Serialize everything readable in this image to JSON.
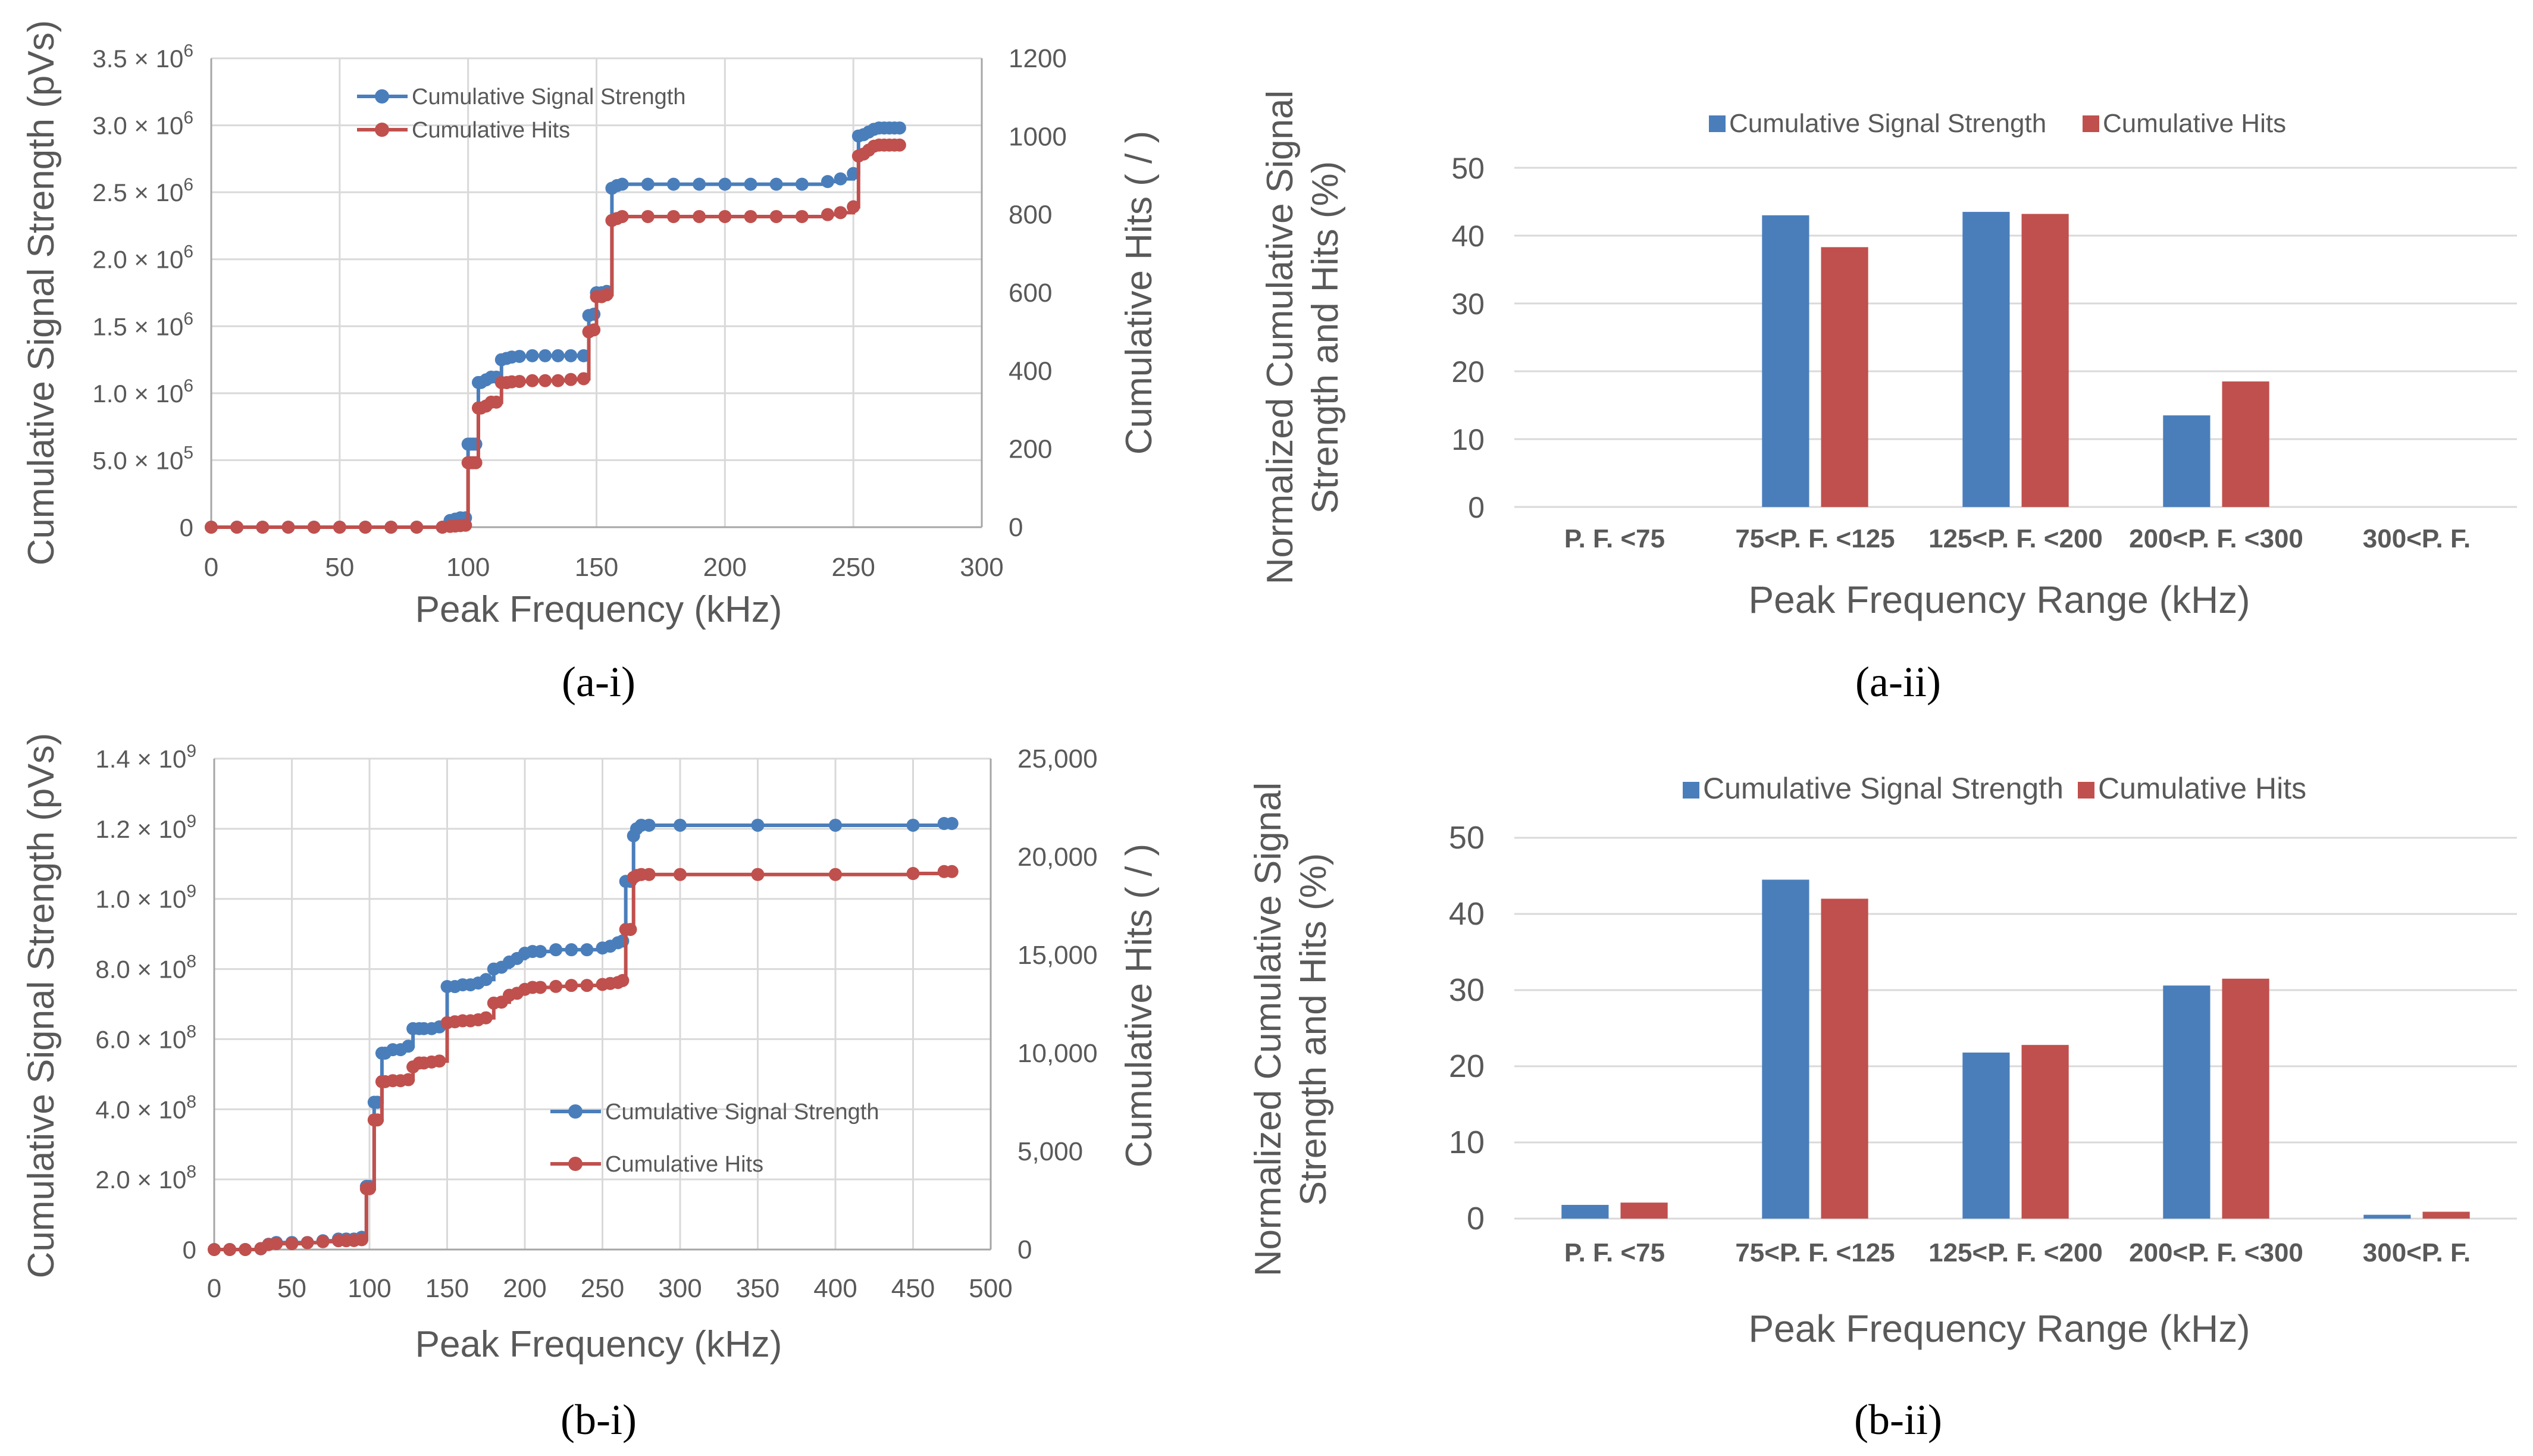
{
  "captions": {
    "a_i": "(a-i)",
    "a_ii": "(a-ii)",
    "b_i": "(b-i)",
    "b_ii": "(b-ii)"
  },
  "colors": {
    "blue": "#4a7ebb",
    "red": "#c0504d",
    "grid": "#d9d9d9",
    "axis_text": "#595959"
  },
  "chart_data": [
    {
      "id": "a-i",
      "type": "line",
      "xlabel": "Peak Frequency (kHz)",
      "ylabel": "Cumulative Signal Strength (pVs)",
      "y2label": "Cumulative Hits ( / )",
      "xlim": [
        0,
        300
      ],
      "xticks": [
        0,
        50,
        100,
        150,
        200,
        250,
        300
      ],
      "ylim": [
        0,
        3500000
      ],
      "yticks": [
        {
          "v": 0,
          "m": "0",
          "e": ""
        },
        {
          "v": 500000,
          "m": "5.0 × 10",
          "e": "5"
        },
        {
          "v": 1000000,
          "m": "1.0 × 10",
          "e": "6"
        },
        {
          "v": 1500000,
          "m": "1.5 × 10",
          "e": "6"
        },
        {
          "v": 2000000,
          "m": "2.0 × 10",
          "e": "6"
        },
        {
          "v": 2500000,
          "m": "2.5 × 10",
          "e": "6"
        },
        {
          "v": 3000000,
          "m": "3.0 × 10",
          "e": "6"
        },
        {
          "v": 3500000,
          "m": "3.5 × 10",
          "e": "6"
        }
      ],
      "y2lim": [
        0,
        1200
      ],
      "y2ticks": [
        "0",
        "200",
        "400",
        "600",
        "800",
        "1000",
        "1200"
      ],
      "legend_position": "top-left",
      "series": [
        {
          "name": "Cumulative Signal Strength",
          "color": "#4a7ebb",
          "axis": "left",
          "x": [
            0,
            10,
            20,
            30,
            40,
            50,
            60,
            70,
            80,
            90,
            93,
            95,
            97,
            99,
            100,
            101,
            102,
            103,
            104,
            105,
            107,
            109,
            111,
            113,
            115,
            117,
            120,
            125,
            130,
            135,
            140,
            145,
            147,
            149,
            150,
            152,
            154,
            156,
            158,
            160,
            170,
            180,
            190,
            200,
            210,
            220,
            230,
            240,
            245,
            250,
            252,
            254,
            256,
            258,
            260,
            262,
            264,
            266,
            268
          ],
          "y": [
            0,
            0,
            0,
            0,
            0,
            0,
            0,
            0,
            0,
            0,
            50000,
            60000,
            70000,
            70000,
            620000,
            620000,
            620000,
            620000,
            1080000,
            1080000,
            1100000,
            1120000,
            1120000,
            1250000,
            1260000,
            1270000,
            1275000,
            1280000,
            1280000,
            1280000,
            1280000,
            1280000,
            1580000,
            1590000,
            1750000,
            1750000,
            1760000,
            2530000,
            2550000,
            2560000,
            2560000,
            2560000,
            2560000,
            2560000,
            2560000,
            2560000,
            2560000,
            2580000,
            2600000,
            2640000,
            2920000,
            2930000,
            2950000,
            2970000,
            2980000,
            2980000,
            2980000,
            2980000,
            2980000
          ]
        },
        {
          "name": "Cumulative Hits",
          "color": "#c0504d",
          "axis": "right",
          "x": [
            0,
            10,
            20,
            30,
            40,
            50,
            60,
            70,
            80,
            90,
            93,
            95,
            97,
            99,
            100,
            101,
            102,
            103,
            104,
            105,
            107,
            109,
            111,
            113,
            115,
            117,
            120,
            125,
            130,
            135,
            140,
            145,
            147,
            149,
            150,
            152,
            154,
            156,
            158,
            160,
            170,
            180,
            190,
            200,
            210,
            220,
            230,
            240,
            245,
            250,
            252,
            254,
            256,
            258,
            260,
            262,
            264,
            266,
            268
          ],
          "y": [
            0,
            0,
            0,
            0,
            0,
            0,
            0,
            0,
            0,
            0,
            2,
            3,
            4,
            5,
            165,
            165,
            165,
            165,
            305,
            305,
            310,
            320,
            320,
            370,
            370,
            372,
            373,
            375,
            375,
            375,
            378,
            380,
            500,
            505,
            590,
            590,
            595,
            785,
            790,
            795,
            795,
            795,
            795,
            795,
            795,
            795,
            795,
            800,
            805,
            820,
            950,
            955,
            965,
            975,
            978,
            978,
            978,
            978,
            978
          ]
        }
      ]
    },
    {
      "id": "a-ii",
      "type": "bar",
      "xlabel": "Peak Frequency Range (kHz)",
      "ylabel_lines": [
        "Normalized Cumulative Signal",
        "Strength and Hits (%)"
      ],
      "categories": [
        "P. F. <75",
        "75<P. F. <125",
        "125<P. F. <200",
        "200<P. F. <300",
        "300<P. F."
      ],
      "ylim": [
        0,
        50
      ],
      "yticks": [
        "0",
        "10",
        "20",
        "30",
        "40",
        "50"
      ],
      "legend_position": "top",
      "series": [
        {
          "name": "Cumulative Signal Strength",
          "color": "#4a7ebb",
          "values": [
            0,
            43,
            43.5,
            13.5,
            0
          ]
        },
        {
          "name": "Cumulative Hits",
          "color": "#c0504d",
          "values": [
            0,
            38.3,
            43.2,
            18.5,
            0
          ]
        }
      ]
    },
    {
      "id": "b-i",
      "type": "line",
      "xlabel": "Peak Frequency (kHz)",
      "ylabel": "Cumulative Signal Strength (pVs)",
      "y2label": "Cumulative Hits ( / )",
      "xlim": [
        0,
        500
      ],
      "xticks": [
        0,
        50,
        100,
        150,
        200,
        250,
        300,
        350,
        400,
        450,
        500
      ],
      "ylim": [
        0,
        1400000000
      ],
      "yticks": [
        {
          "v": 0,
          "m": "0",
          "e": ""
        },
        {
          "v": 200000000,
          "m": "2.0 × 10",
          "e": "8"
        },
        {
          "v": 400000000,
          "m": "4.0 × 10",
          "e": "8"
        },
        {
          "v": 600000000,
          "m": "6.0 × 10",
          "e": "8"
        },
        {
          "v": 800000000,
          "m": "8.0 × 10",
          "e": "8"
        },
        {
          "v": 1000000000,
          "m": "1.0 × 10",
          "e": "9"
        },
        {
          "v": 1200000000,
          "m": "1.2 × 10",
          "e": "9"
        },
        {
          "v": 1400000000,
          "m": "1.4 × 10",
          "e": "9"
        }
      ],
      "y2lim": [
        0,
        25000
      ],
      "y2ticks": [
        "0",
        "5,000",
        "10,000",
        "15,000",
        "20,000",
        "25,000"
      ],
      "legend_position": "bottom-right",
      "series": [
        {
          "name": "Cumulative Signal Strength",
          "color": "#4a7ebb",
          "axis": "left",
          "x": [
            0,
            10,
            20,
            30,
            35,
            40,
            50,
            60,
            70,
            80,
            85,
            90,
            95,
            98,
            100,
            103,
            105,
            108,
            110,
            115,
            120,
            125,
            128,
            132,
            135,
            140,
            145,
            150,
            155,
            160,
            165,
            170,
            175,
            180,
            185,
            190,
            195,
            200,
            205,
            210,
            220,
            230,
            240,
            250,
            255,
            260,
            263,
            265,
            268,
            270,
            272,
            275,
            280,
            300,
            350,
            400,
            450,
            470,
            475
          ],
          "y": [
            0,
            0,
            0,
            2000000,
            15000000,
            20000000,
            20000000,
            20000000,
            25000000,
            30000000,
            30000000,
            30000000,
            35000000,
            180000000,
            180000000,
            420000000,
            420000000,
            560000000,
            560000000,
            570000000,
            570000000,
            580000000,
            630000000,
            630000000,
            630000000,
            630000000,
            635000000,
            750000000,
            750000000,
            755000000,
            755000000,
            760000000,
            770000000,
            800000000,
            805000000,
            820000000,
            830000000,
            845000000,
            850000000,
            850000000,
            855000000,
            855000000,
            855000000,
            860000000,
            865000000,
            875000000,
            880000000,
            1050000000,
            1050000000,
            1180000000,
            1200000000,
            1210000000,
            1210000000,
            1210000000,
            1210000000,
            1210000000,
            1210000000,
            1215000000,
            1215000000
          ]
        },
        {
          "name": "Cumulative Hits",
          "color": "#c0504d",
          "axis": "right",
          "x": [
            0,
            10,
            20,
            30,
            35,
            40,
            50,
            60,
            70,
            80,
            85,
            90,
            95,
            98,
            100,
            103,
            105,
            108,
            110,
            115,
            120,
            125,
            128,
            132,
            135,
            140,
            145,
            150,
            155,
            160,
            165,
            170,
            175,
            180,
            185,
            190,
            195,
            200,
            205,
            210,
            220,
            230,
            240,
            250,
            255,
            260,
            263,
            265,
            268,
            270,
            272,
            275,
            280,
            300,
            350,
            400,
            450,
            470,
            475
          ],
          "y": [
            0,
            0,
            0,
            50,
            250,
            300,
            300,
            350,
            400,
            450,
            450,
            460,
            500,
            3100,
            3100,
            6600,
            6600,
            8550,
            8550,
            8600,
            8600,
            8650,
            9300,
            9500,
            9500,
            9550,
            9600,
            11550,
            11600,
            11650,
            11650,
            11700,
            11800,
            12550,
            12600,
            12950,
            13050,
            13250,
            13350,
            13350,
            13400,
            13450,
            13450,
            13500,
            13550,
            13600,
            13700,
            16300,
            16300,
            18950,
            19050,
            19100,
            19100,
            19100,
            19100,
            19100,
            19150,
            19250,
            19250
          ]
        }
      ]
    },
    {
      "id": "b-ii",
      "type": "bar",
      "xlabel": "Peak Frequency Range (kHz)",
      "ylabel_lines": [
        "Normalized Cumulative Signal",
        "Strength and Hits (%)"
      ],
      "categories": [
        "P. F. <75",
        "75<P. F. <125",
        "125<P. F. <200",
        "200<P. F. <300",
        "300<P. F."
      ],
      "ylim": [
        0,
        50
      ],
      "yticks": [
        "0",
        "10",
        "20",
        "30",
        "40",
        "50"
      ],
      "legend_position": "top",
      "series": [
        {
          "name": "Cumulative Signal Strength",
          "color": "#4a7ebb",
          "values": [
            1.8,
            44.5,
            21.8,
            30.6,
            0.5
          ]
        },
        {
          "name": "Cumulative Hits",
          "color": "#c0504d",
          "values": [
            2.1,
            42,
            22.8,
            31.5,
            0.9
          ]
        }
      ]
    }
  ]
}
